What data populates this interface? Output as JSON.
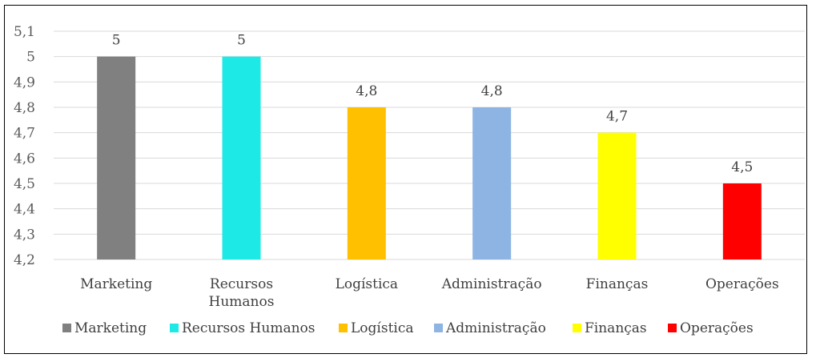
{
  "chart_data": {
    "type": "bar",
    "categories": [
      "Marketing",
      "Recursos Humanos",
      "Logística",
      "Administração",
      "Finanças",
      "Operações"
    ],
    "category_lines": [
      [
        "Marketing"
      ],
      [
        "Recursos",
        "Humanos"
      ],
      [
        "Logística"
      ],
      [
        "Administração"
      ],
      [
        "Finanças"
      ],
      [
        "Operações"
      ]
    ],
    "values": [
      5,
      5,
      4.8,
      4.8,
      4.7,
      4.5
    ],
    "value_labels": [
      "5",
      "5",
      "4,8",
      "4,8",
      "4,7",
      "4,5"
    ],
    "colors": [
      "#808080",
      "#1DE9E6",
      "#FFC000",
      "#8EB4E3",
      "#FFFF00",
      "#FF0000"
    ],
    "ylim": [
      4.2,
      5.1
    ],
    "y_ticks": [
      4.2,
      4.3,
      4.4,
      4.5,
      4.6,
      4.7,
      4.8,
      4.9,
      5,
      5.1
    ],
    "y_tick_labels": [
      "4,2",
      "4,3",
      "4,4",
      "4,5",
      "4,6",
      "4,7",
      "4,8",
      "4,9",
      "5",
      "5,1"
    ],
    "grid": true,
    "legend": {
      "placement": "bottom",
      "entries": [
        "Marketing",
        "Recursos Humanos",
        "Logística",
        "Administração",
        "Finanças",
        "Operações"
      ]
    },
    "title": "",
    "xlabel": "",
    "ylabel": ""
  }
}
